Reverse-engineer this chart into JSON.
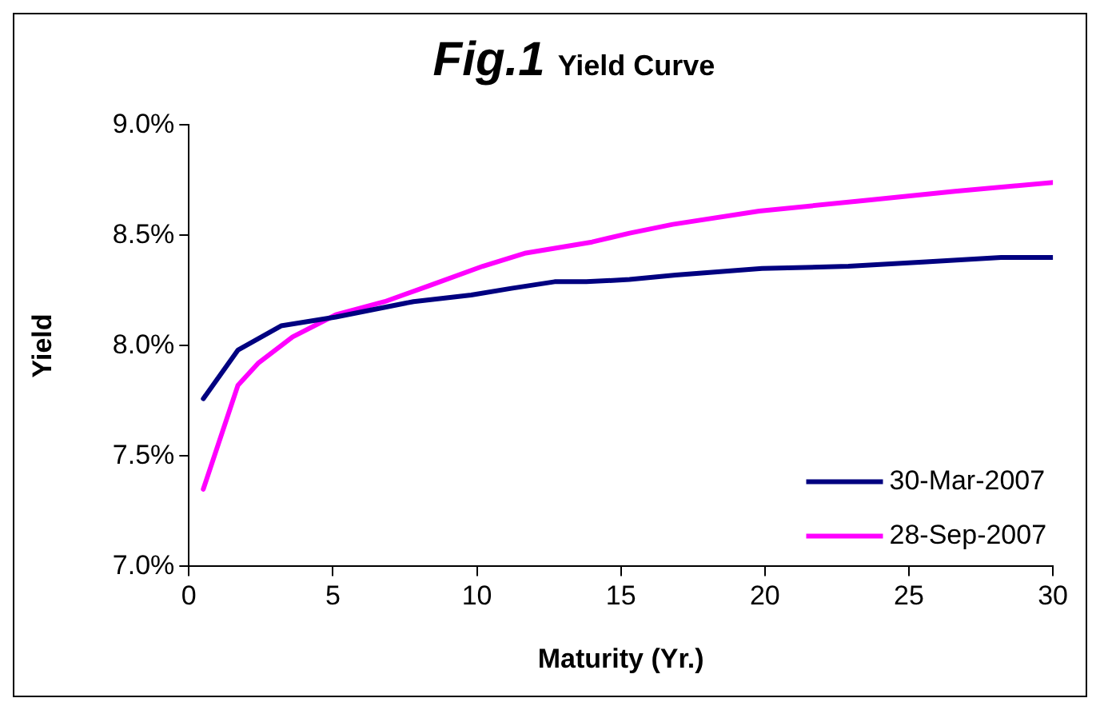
{
  "chart_data": {
    "type": "line",
    "title": "Fig.1 Yield Curve",
    "xlabel": "Maturity (Yr.)",
    "ylabel": "Yield",
    "xlim": [
      0,
      30
    ],
    "xticks": [
      0,
      5,
      10,
      15,
      20,
      25,
      30
    ],
    "ylim": [
      7,
      9
    ],
    "yticks": [
      {
        "value": 7,
        "label": "7.0%"
      },
      {
        "value": 7.5,
        "label": "7.5%"
      },
      {
        "value": 8,
        "label": "8.0%"
      },
      {
        "value": 8.5,
        "label": "8.5%"
      },
      {
        "value": 9,
        "label": "9.0%"
      }
    ],
    "grid": false,
    "legend": "bottom right",
    "marker": "none",
    "line_style": "solid",
    "series": [
      {
        "name": "30-Mar-2007",
        "color": "#000080",
        "x": [
          0.5,
          1.7,
          3.2,
          5.1,
          7.8,
          9.8,
          11.2,
          12.7,
          13.8,
          15.3,
          16.9,
          19.9,
          22.9,
          25.6,
          28.2,
          30
        ],
        "values": [
          7.76,
          7.98,
          8.09,
          8.13,
          8.2,
          8.23,
          8.26,
          8.29,
          8.29,
          8.3,
          8.32,
          8.35,
          8.36,
          8.38,
          8.4,
          8.4
        ]
      },
      {
        "name": "28-Sep-2007",
        "color": "#ff00ff",
        "x": [
          0.5,
          1.7,
          2.4,
          3.6,
          5.1,
          6.8,
          8.3,
          10.2,
          11.7,
          14,
          15.3,
          16.8,
          19.8,
          23.6,
          26.6,
          30
        ],
        "values": [
          7.35,
          7.82,
          7.92,
          8.04,
          8.14,
          8.2,
          8.27,
          8.36,
          8.42,
          8.47,
          8.51,
          8.55,
          8.61,
          8.66,
          8.7,
          8.74
        ]
      }
    ]
  }
}
